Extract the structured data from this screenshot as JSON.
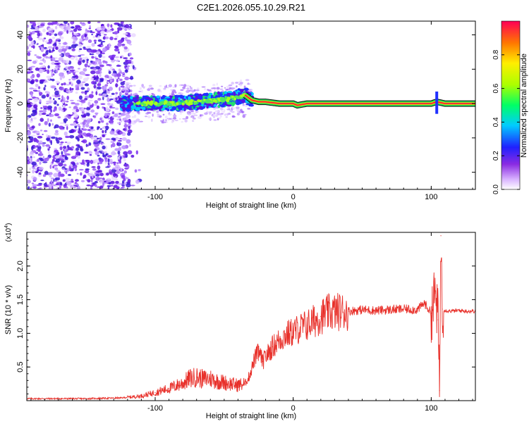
{
  "title": "C2E1.2026.055.10.29.R21",
  "chart_data": [
    {
      "type": "heatmap",
      "name": "spectrogram",
      "title": "C2E1.2026.055.10.29.R21",
      "xlabel": "Height of straight line (km)",
      "ylabel": "Frequency (Hz)",
      "xlim": [
        -193,
        132
      ],
      "ylim": [
        -50,
        48
      ],
      "x_ticks": [
        -100,
        0,
        100
      ],
      "x_tick_labels": [
        "-100",
        "0",
        "100"
      ],
      "y_ticks": [
        -40,
        -20,
        0,
        20,
        40
      ],
      "y_tick_labels": [
        "-40",
        "-20",
        "0",
        "20",
        "40"
      ],
      "colorbar": {
        "label": "Normalized spectral amplitude",
        "range": [
          0,
          1
        ],
        "ticks": [
          0.0,
          0.2,
          0.4,
          0.6,
          0.8
        ],
        "tick_labels": [
          "0.0",
          "0.2",
          "0.4",
          "0.6",
          "0.8"
        ]
      },
      "signal_track": {
        "description_x": [
          -125,
          -110,
          -90,
          -70,
          -55,
          -45,
          -40,
          -35,
          -30,
          -25,
          -20,
          -10,
          0,
          3,
          10,
          50,
          100,
          104,
          110,
          132
        ],
        "frequency_y": [
          0,
          0,
          0,
          1,
          2,
          3,
          4,
          5,
          2,
          1,
          1,
          0,
          0,
          -1,
          0,
          0,
          0,
          1,
          0,
          0
        ]
      }
    },
    {
      "type": "line",
      "name": "snr",
      "xlabel": "Height of straight line (km)",
      "ylabel": "SNR (10 * v/v)",
      "y_multiplier_label": "(x10",
      "y_multiplier_exp": "4",
      "xlim": [
        -193,
        132
      ],
      "ylim": [
        0,
        25000
      ],
      "x_ticks": [
        -100,
        0,
        100
      ],
      "x_tick_labels": [
        "-100",
        "0",
        "100"
      ],
      "y_ticks": [
        5000,
        10000,
        15000,
        20000
      ],
      "y_tick_labels": [
        "0.5",
        "1.0",
        "1.5",
        "2.0"
      ],
      "series": [
        {
          "name": "SNR",
          "color": "#e8302a",
          "x": [
            -193,
            -150,
            -125,
            -110,
            -100,
            -90,
            -80,
            -75,
            -70,
            -65,
            -60,
            -55,
            -50,
            -45,
            -40,
            -35,
            -32,
            -30,
            -28,
            -25,
            -22,
            -20,
            -15,
            -10,
            -5,
            0,
            5,
            10,
            15,
            20,
            25,
            30,
            40,
            50,
            60,
            70,
            80,
            90,
            95,
            100,
            103,
            105,
            106,
            107,
            108,
            110,
            115,
            120,
            125,
            132
          ],
          "y": [
            300,
            300,
            400,
            700,
            1200,
            1800,
            2600,
            3300,
            3500,
            3200,
            3300,
            2900,
            2700,
            2500,
            2300,
            2500,
            3600,
            4800,
            6200,
            7200,
            5800,
            6500,
            8000,
            9000,
            9800,
            10200,
            10800,
            11200,
            11800,
            12500,
            13000,
            13200,
            13300,
            13500,
            13400,
            13500,
            13600,
            13500,
            14500,
            13000,
            16000,
            12000,
            1500,
            24500,
            13600,
            13400,
            13300,
            13400,
            13300,
            13300
          ]
        }
      ]
    }
  ]
}
